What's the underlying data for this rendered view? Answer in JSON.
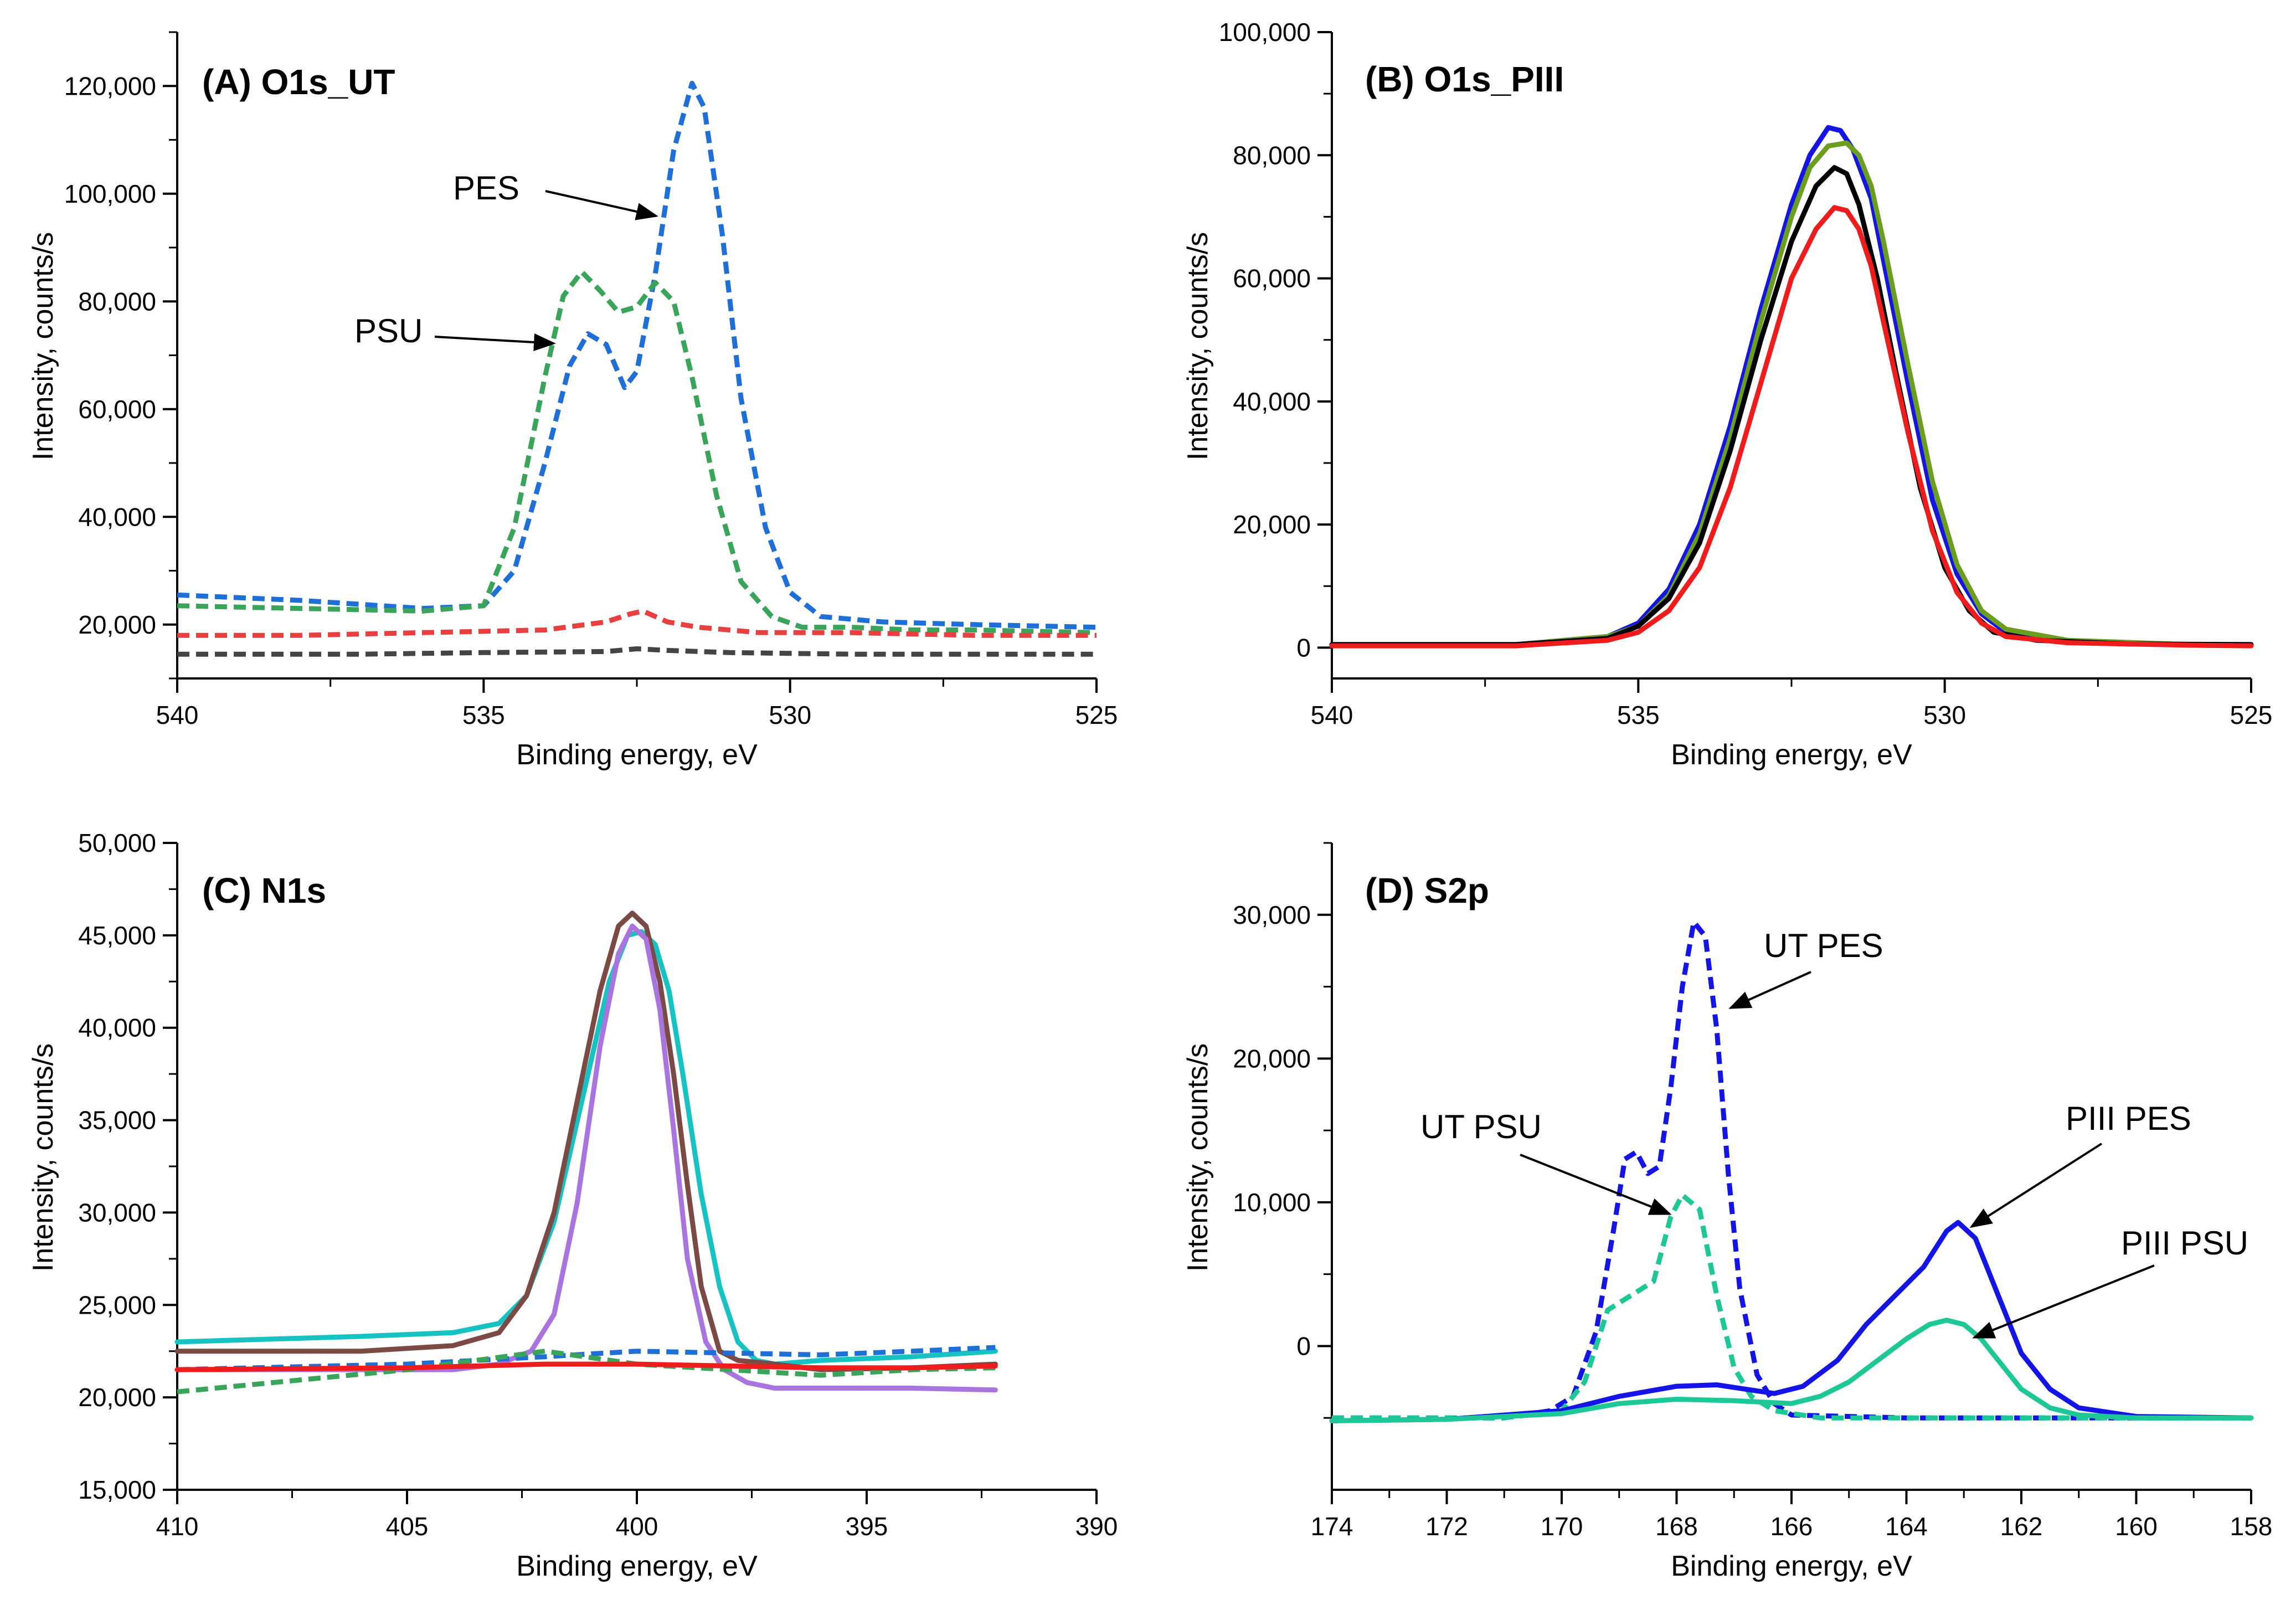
{
  "chart_data": [
    {
      "id": "A",
      "type": "line",
      "title": "(A) O1s_UT",
      "xlabel": "Binding energy, eV",
      "ylabel": "Intensity, counts/s",
      "xlim": [
        540,
        525
      ],
      "ylim": [
        10000,
        130000
      ],
      "xticks": [
        540,
        535,
        530,
        525
      ],
      "xtick_labels": [
        "540",
        "535",
        "530",
        "525"
      ],
      "yticks": [
        20000,
        40000,
        60000,
        80000,
        100000,
        120000
      ],
      "ytick_labels": [
        "20,000",
        "40,000",
        "60,000",
        "80,000",
        "100,000",
        "120,000"
      ],
      "series": [
        {
          "name": "PES",
          "color": "#1f6fd8",
          "dash": true,
          "x": [
            540,
            538,
            536,
            535,
            534.5,
            534,
            533.6,
            533.3,
            533,
            532.7,
            532.5,
            532.2,
            531.9,
            531.6,
            531.4,
            531.1,
            530.8,
            530.4,
            530,
            529.5,
            528.5,
            527,
            525
          ],
          "y": [
            25500,
            24500,
            23000,
            23500,
            30000,
            50000,
            68000,
            74000,
            72000,
            64000,
            67000,
            85000,
            108000,
            120500,
            116000,
            92000,
            62000,
            38000,
            26000,
            21500,
            20500,
            20000,
            19500
          ]
        },
        {
          "name": "PSU",
          "color": "#3aa55a",
          "dash": true,
          "x": [
            540,
            538,
            536,
            535,
            534.5,
            534,
            533.7,
            533.4,
            533.1,
            532.8,
            532.5,
            532.2,
            531.9,
            531.6,
            531.2,
            530.8,
            530.3,
            529.8,
            529,
            528,
            527,
            525
          ],
          "y": [
            23500,
            23000,
            22500,
            23500,
            38000,
            66000,
            81000,
            85500,
            82000,
            78000,
            79000,
            83500,
            80000,
            66000,
            44000,
            28000,
            21500,
            19500,
            19500,
            19000,
            19000,
            18500
          ]
        },
        {
          "name": "red",
          "color": "#e84040",
          "dash": true,
          "x": [
            540,
            538,
            536,
            534,
            533,
            532.6,
            532.4,
            532,
            531.5,
            530.5,
            529,
            527,
            525
          ],
          "y": [
            18000,
            18000,
            18500,
            19000,
            20500,
            22000,
            22500,
            20500,
            19500,
            18500,
            18500,
            18000,
            18000
          ]
        },
        {
          "name": "black",
          "color": "#444444",
          "dash": true,
          "x": [
            540,
            537,
            535,
            533,
            532.5,
            532,
            531,
            529,
            527,
            525
          ],
          "y": [
            14500,
            14500,
            14800,
            15000,
            15500,
            15200,
            14800,
            14500,
            14500,
            14500
          ]
        }
      ],
      "annotations": [
        {
          "text": "PES",
          "series": "PES"
        },
        {
          "text": "PSU",
          "series": "PSU"
        }
      ]
    },
    {
      "id": "B",
      "type": "line",
      "title": "(B) O1s_PIII",
      "xlabel": "Binding energy, eV",
      "ylabel": "Intensity, counts/s",
      "xlim": [
        540,
        525
      ],
      "ylim": [
        -5000,
        100000
      ],
      "xticks": [
        540,
        535,
        530,
        525
      ],
      "xtick_labels": [
        "540",
        "535",
        "530",
        "525"
      ],
      "yticks": [
        0,
        20000,
        40000,
        60000,
        80000,
        100000
      ],
      "ytick_labels": [
        "0",
        "20,000",
        "40,000",
        "60,000",
        "80,000",
        "100,000"
      ],
      "series": [
        {
          "name": "blue",
          "color": "#1414e6",
          "dash": false,
          "x": [
            540,
            537,
            535.5,
            535,
            534.5,
            534,
            533.5,
            533,
            532.5,
            532.2,
            531.9,
            531.7,
            531.5,
            531.2,
            531,
            530.6,
            530.2,
            529.8,
            529.4,
            529,
            528,
            526,
            525
          ],
          "y": [
            500,
            500,
            1800,
            4000,
            9500,
            20000,
            36000,
            55000,
            72000,
            80000,
            84500,
            84000,
            81000,
            73000,
            63000,
            43000,
            24000,
            12000,
            5500,
            2500,
            1000,
            500,
            500
          ]
        },
        {
          "name": "green",
          "color": "#6b9e1f",
          "dash": false,
          "x": [
            540,
            537,
            535.5,
            535,
            534.5,
            534,
            533.5,
            533,
            532.5,
            532.2,
            531.9,
            531.6,
            531.4,
            531.2,
            531,
            530.6,
            530.2,
            529.8,
            529.4,
            529,
            528,
            526,
            525
          ],
          "y": [
            500,
            500,
            1800,
            3500,
            8500,
            18500,
            34000,
            53000,
            70000,
            78000,
            81500,
            82000,
            80000,
            75000,
            66000,
            46000,
            27000,
            13500,
            6000,
            3000,
            1200,
            500,
            500
          ]
        },
        {
          "name": "black",
          "color": "#000000",
          "dash": false,
          "x": [
            540,
            537,
            535.5,
            535,
            534.5,
            534,
            533.5,
            533,
            532.5,
            532.1,
            531.8,
            531.6,
            531.4,
            531.1,
            530.8,
            530.4,
            530,
            529.6,
            529.2,
            528.5,
            527,
            525
          ],
          "y": [
            500,
            500,
            1500,
            3500,
            8000,
            17000,
            32000,
            50000,
            66000,
            75000,
            78000,
            77000,
            72000,
            60000,
            45000,
            26000,
            13000,
            6000,
            2500,
            1200,
            600,
            500
          ]
        },
        {
          "name": "red",
          "color": "#ee1c1c",
          "dash": false,
          "x": [
            540,
            537,
            535.5,
            535,
            534.5,
            534,
            533.5,
            533,
            532.5,
            532.1,
            531.8,
            531.6,
            531.4,
            531.2,
            531,
            530.6,
            530.2,
            529.8,
            529.4,
            529,
            528,
            526,
            525
          ],
          "y": [
            300,
            300,
            1200,
            2500,
            6000,
            13000,
            26000,
            43000,
            60000,
            68000,
            71500,
            71000,
            68000,
            62000,
            53000,
            35000,
            19000,
            9000,
            4000,
            1800,
            800,
            400,
            300
          ]
        }
      ]
    },
    {
      "id": "C",
      "type": "line",
      "title": "(C) N1s",
      "xlabel": "Binding energy, eV",
      "ylabel": "Intensity, counts/s",
      "xlim": [
        410,
        390
      ],
      "ylim": [
        15000,
        50000
      ],
      "xticks": [
        410,
        405,
        400,
        395,
        390
      ],
      "xtick_labels": [
        "410",
        "405",
        "400",
        "395",
        "390"
      ],
      "yticks": [
        15000,
        20000,
        25000,
        30000,
        35000,
        40000,
        45000,
        50000
      ],
      "ytick_labels": [
        "15,000",
        "20,000",
        "25,000",
        "30,000",
        "35,000",
        "40,000",
        "45,000",
        "50,000"
      ],
      "series": [
        {
          "name": "cyan",
          "color": "#16c2c2",
          "dash": false,
          "x": [
            410,
            406,
            404,
            403,
            402.4,
            401.8,
            401.2,
            400.6,
            400.2,
            399.9,
            399.6,
            399.3,
            399,
            398.6,
            398.2,
            397.8,
            397.4,
            397,
            396,
            394,
            392.2
          ],
          "y": [
            23000,
            23300,
            23500,
            24000,
            25500,
            29500,
            36000,
            42500,
            45000,
            45200,
            44500,
            42000,
            37500,
            31000,
            26000,
            23000,
            22000,
            21800,
            22000,
            22200,
            22500
          ]
        },
        {
          "name": "brown",
          "color": "#7b4a45",
          "dash": false,
          "x": [
            410,
            406,
            404,
            403,
            402.4,
            401.8,
            401.3,
            400.8,
            400.4,
            400.1,
            399.8,
            399.5,
            399.2,
            398.9,
            398.6,
            398.2,
            397.8,
            397,
            396,
            394,
            392.2
          ],
          "y": [
            22500,
            22500,
            22800,
            23500,
            25500,
            30000,
            36000,
            42000,
            45500,
            46200,
            45500,
            42500,
            37500,
            31500,
            26000,
            22500,
            22000,
            21800,
            21500,
            21600,
            21800
          ]
        },
        {
          "name": "purple",
          "color": "#a974dd",
          "dash": false,
          "x": [
            410,
            406,
            404,
            403,
            402.3,
            401.8,
            401.3,
            400.8,
            400.4,
            400.1,
            399.8,
            399.5,
            399.2,
            398.9,
            398.5,
            398.1,
            397.6,
            397,
            396,
            394,
            392.2
          ],
          "y": [
            21500,
            21500,
            21500,
            21800,
            22500,
            24500,
            30500,
            39000,
            44000,
            45500,
            44800,
            41000,
            34500,
            27500,
            23000,
            21500,
            20800,
            20500,
            20500,
            20500,
            20400
          ]
        },
        {
          "name": "blue-dash",
          "color": "#1f6fd8",
          "dash": true,
          "x": [
            410,
            405,
            402,
            400,
            398,
            396,
            394,
            392.2
          ],
          "y": [
            21500,
            21800,
            22200,
            22500,
            22400,
            22300,
            22500,
            22700
          ]
        },
        {
          "name": "green-dash",
          "color": "#3aa55a",
          "dash": true,
          "x": [
            410,
            405,
            402,
            400,
            398,
            396,
            394,
            392.2
          ],
          "y": [
            20300,
            21500,
            22500,
            21800,
            21500,
            21200,
            21500,
            21600
          ]
        },
        {
          "name": "red-line",
          "color": "#ee1c1c",
          "dash": false,
          "x": [
            410,
            405,
            402,
            400,
            398,
            396,
            394,
            392.2
          ],
          "y": [
            21500,
            21600,
            21800,
            21800,
            21700,
            21600,
            21600,
            21700
          ]
        }
      ]
    },
    {
      "id": "D",
      "type": "line",
      "title": "(D) S2p",
      "xlabel": "Binding energy, eV",
      "ylabel": "Intensity, counts/s",
      "xlim": [
        174,
        158
      ],
      "ylim": [
        -10000,
        35000
      ],
      "xticks": [
        174,
        172,
        170,
        168,
        166,
        164,
        162,
        160,
        158
      ],
      "xtick_labels": [
        "174",
        "172",
        "170",
        "168",
        "166",
        "164",
        "162",
        "160",
        "158"
      ],
      "yticks": [
        0,
        10000,
        20000,
        30000
      ],
      "ytick_labels": [
        "0",
        "10,000",
        "20,000",
        "30,000"
      ],
      "series": [
        {
          "name": "UT PES",
          "color": "#1414e6",
          "dash": true,
          "x": [
            174,
            171,
            170.2,
            169.8,
            169.4,
            169.1,
            168.9,
            168.7,
            168.5,
            168.3,
            168.1,
            167.9,
            167.7,
            167.5,
            167.3,
            167.1,
            166.9,
            166.6,
            166.3,
            166,
            164,
            160,
            158
          ],
          "y": [
            -5000,
            -5000,
            -4500,
            -3500,
            1000,
            8000,
            13000,
            13500,
            12000,
            12500,
            18000,
            25000,
            29500,
            28500,
            22000,
            12000,
            4000,
            -2000,
            -4000,
            -4800,
            -5000,
            -5000,
            -5000
          ]
        },
        {
          "name": "UT PSU",
          "color": "#1ec896",
          "dash": true,
          "x": [
            174,
            171,
            170,
            169.6,
            169.2,
            168.8,
            168.4,
            168.1,
            167.9,
            167.6,
            167.3,
            167,
            166.7,
            166.3,
            165.5,
            163,
            160,
            158
          ],
          "y": [
            -5000,
            -5000,
            -4500,
            -2500,
            2500,
            3500,
            4500,
            9000,
            10500,
            9500,
            3500,
            -1500,
            -3500,
            -4500,
            -5000,
            -5000,
            -5000,
            -5000
          ]
        },
        {
          "name": "PIII PES",
          "color": "#1414e6",
          "dash": false,
          "x": [
            174,
            172,
            170,
            169,
            168,
            167.3,
            166.8,
            166.3,
            165.8,
            165.2,
            164.7,
            164.2,
            163.7,
            163.3,
            163.1,
            162.8,
            162.4,
            162,
            161.5,
            161,
            160,
            158
          ],
          "y": [
            -5200,
            -5100,
            -4500,
            -3500,
            -2800,
            -2700,
            -3000,
            -3300,
            -2800,
            -1000,
            1500,
            3500,
            5500,
            8000,
            8600,
            7500,
            3500,
            -500,
            -3000,
            -4300,
            -4900,
            -5000
          ]
        },
        {
          "name": "PIII PSU",
          "color": "#1ec896",
          "dash": false,
          "x": [
            174,
            172,
            170,
            169,
            168,
            167,
            166.5,
            166,
            165.5,
            165,
            164.5,
            164,
            163.6,
            163.3,
            163,
            162.7,
            162.3,
            162,
            161.5,
            161,
            160,
            158
          ],
          "y": [
            -5200,
            -5100,
            -4700,
            -4000,
            -3700,
            -3800,
            -3900,
            -4000,
            -3500,
            -2500,
            -1000,
            500,
            1500,
            1800,
            1500,
            500,
            -1500,
            -3000,
            -4300,
            -4800,
            -5000,
            -5000
          ]
        }
      ],
      "annotations": [
        {
          "text": "UT PES",
          "series": "UT PES"
        },
        {
          "text": "UT PSU",
          "series": "UT PSU"
        },
        {
          "text": "PIII PES",
          "series": "PIII PES"
        },
        {
          "text": "PIII PSU",
          "series": "PIII PSU"
        }
      ]
    }
  ]
}
